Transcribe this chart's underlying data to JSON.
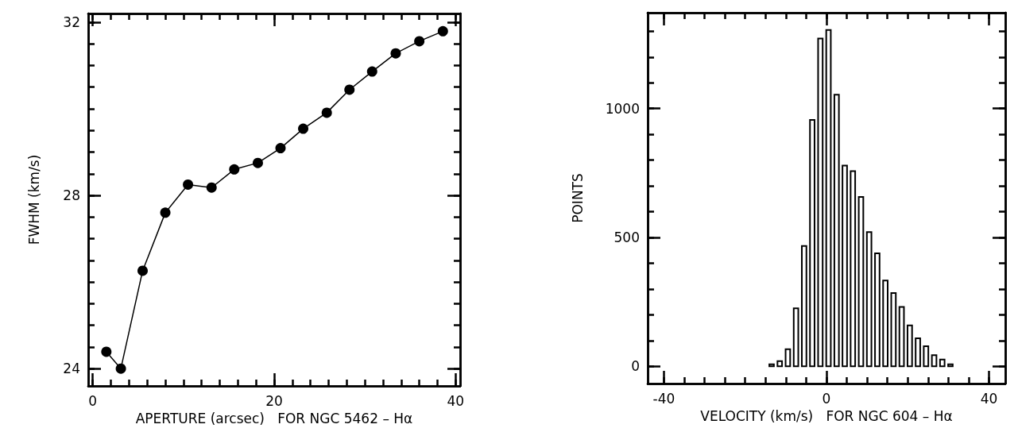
{
  "chart_data": [
    {
      "type": "line",
      "xlabel": "APERTURE (arcsec)   FOR NGC 5462 – Hα",
      "ylabel": "FWHM (km/s)",
      "x": [
        1.5,
        3.1,
        5.5,
        8.0,
        10.5,
        13.1,
        15.6,
        18.2,
        20.7,
        23.2,
        25.8,
        28.3,
        30.8,
        33.4,
        36.0,
        38.6
      ],
      "series": [
        {
          "color": "#000000",
          "values": [
            24.39,
            24.0,
            26.26,
            27.6,
            28.25,
            28.18,
            28.6,
            28.75,
            29.09,
            29.54,
            29.91,
            30.44,
            30.86,
            31.28,
            31.56,
            31.79
          ]
        }
      ],
      "marker": "circle",
      "line_style": "solid",
      "grid": false,
      "xlim": [
        -0.5,
        40.5
      ],
      "ylim": [
        23.6,
        32.2
      ],
      "xticks": [
        0,
        {
          "value": 2,
          "label": null
        },
        {
          "value": 4,
          "label": null
        },
        {
          "value": 6,
          "label": null
        },
        {
          "value": 8,
          "label": null
        },
        {
          "value": 10,
          "label": null
        },
        {
          "value": 12,
          "label": null
        },
        {
          "value": 14,
          "label": null
        },
        {
          "value": 16,
          "label": null
        },
        {
          "value": 18,
          "label": null
        },
        20,
        {
          "value": 22,
          "label": null
        },
        {
          "value": 24,
          "label": null
        },
        {
          "value": 26,
          "label": null
        },
        {
          "value": 28,
          "label": null
        },
        {
          "value": 30,
          "label": null
        },
        {
          "value": 32,
          "label": null
        },
        {
          "value": 34,
          "label": null
        },
        {
          "value": 36,
          "label": null
        },
        {
          "value": 38,
          "label": null
        },
        40
      ],
      "yticks": [
        24,
        {
          "value": 24.5,
          "label": null
        },
        {
          "value": 25,
          "label": null
        },
        {
          "value": 25.5,
          "label": null
        },
        {
          "value": 26,
          "label": null
        },
        {
          "value": 26.5,
          "label": null
        },
        {
          "value": 27,
          "label": null
        },
        {
          "value": 27.5,
          "label": null
        },
        28,
        {
          "value": 28.5,
          "label": null
        },
        {
          "value": 29,
          "label": null
        },
        {
          "value": 29.5,
          "label": null
        },
        {
          "value": 30,
          "label": null
        },
        {
          "value": 30.5,
          "label": null
        },
        {
          "value": 31,
          "label": null
        },
        {
          "value": 31.5,
          "label": null
        },
        32
      ]
    },
    {
      "type": "histogram",
      "xlabel": "VELOCITY (km/s)   FOR NGC 604 – Hα",
      "ylabel": "POINTS",
      "color": "#000000",
      "grid": false,
      "bins": [
        -14.5,
        -12.5,
        -10.5,
        -8.5,
        -6.5,
        -4.5,
        -2.5,
        -0.5,
        1.5,
        3.5,
        5.5,
        7.5,
        9.5,
        11.5,
        13.5,
        15.5,
        17.5,
        19.5,
        21.5,
        23.5,
        25.5,
        27.5,
        29.5,
        31.5
      ],
      "values": [
        8,
        20,
        66,
        225,
        467,
        956,
        1272,
        1305,
        1054,
        779,
        757,
        657,
        521,
        438,
        333,
        284,
        230,
        159,
        109,
        78,
        43,
        26,
        8
      ],
      "xlim": [
        -44,
        44
      ],
      "ylim": [
        -67,
        1372
      ],
      "xticks": [
        -40,
        {
          "value": -35,
          "label": null
        },
        {
          "value": -30,
          "label": null
        },
        {
          "value": -25,
          "label": null
        },
        {
          "value": -20,
          "label": null
        },
        {
          "value": -15,
          "label": null
        },
        {
          "value": -10,
          "label": null
        },
        {
          "value": -5,
          "label": null
        },
        0,
        {
          "value": 5,
          "label": null
        },
        {
          "value": 10,
          "label": null
        },
        {
          "value": 15,
          "label": null
        },
        {
          "value": 20,
          "label": null
        },
        {
          "value": 25,
          "label": null
        },
        {
          "value": 30,
          "label": null
        },
        {
          "value": 35,
          "label": null
        },
        40
      ],
      "yticks": [
        0,
        {
          "value": 100,
          "label": null
        },
        {
          "value": 200,
          "label": null
        },
        {
          "value": 300,
          "label": null
        },
        {
          "value": 400,
          "label": null
        },
        500,
        {
          "value": 600,
          "label": null
        },
        {
          "value": 700,
          "label": null
        },
        {
          "value": 800,
          "label": null
        },
        {
          "value": 900,
          "label": null
        },
        1000,
        {
          "value": 1100,
          "label": null
        },
        {
          "value": 1200,
          "label": null
        },
        {
          "value": 1300,
          "label": null
        }
      ]
    }
  ]
}
